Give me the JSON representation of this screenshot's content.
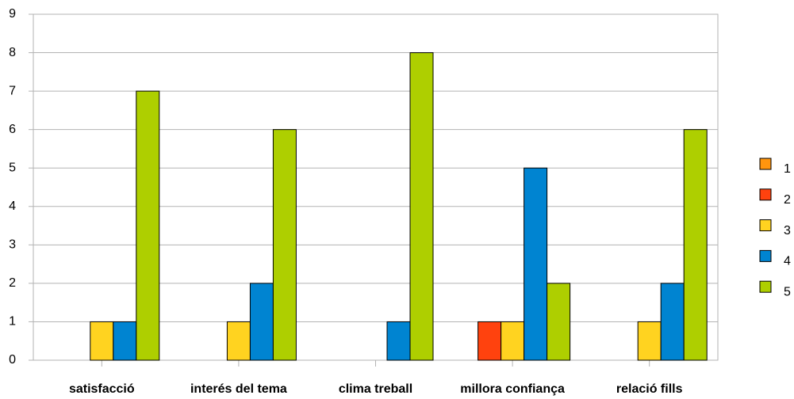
{
  "chart_data": {
    "type": "bar",
    "categories": [
      "satisfacció",
      "interés del tema",
      "clima treball",
      "millora confiança",
      "relació fills"
    ],
    "series": [
      {
        "name": "1",
        "color": "#ff950e",
        "values": [
          0,
          0,
          0,
          0,
          0
        ]
      },
      {
        "name": "2",
        "color": "#ff420e",
        "values": [
          0,
          0,
          0,
          1,
          0
        ]
      },
      {
        "name": "3",
        "color": "#ffd320",
        "values": [
          1,
          1,
          0,
          1,
          1
        ]
      },
      {
        "name": "4",
        "color": "#0084d1",
        "values": [
          1,
          2,
          1,
          5,
          2
        ]
      },
      {
        "name": "5",
        "color": "#aecf00",
        "values": [
          7,
          6,
          8,
          2,
          6
        ]
      }
    ],
    "ylim": [
      0,
      9
    ],
    "yticks": [
      0,
      1,
      2,
      3,
      4,
      5,
      6,
      7,
      8,
      9
    ],
    "grid": true,
    "legend": "right"
  }
}
